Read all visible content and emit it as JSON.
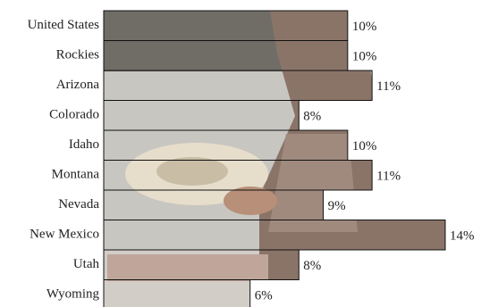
{
  "chart_data": {
    "type": "bar",
    "orientation": "horizontal",
    "categories": [
      "United States",
      "Rockies",
      "Arizona",
      "Colorado",
      "Idaho",
      "Montana",
      "Nevada",
      "New Mexico",
      "Utah",
      "Wyoming"
    ],
    "values": [
      10,
      10,
      11,
      8,
      10,
      11,
      9,
      14,
      8,
      6
    ],
    "value_labels": [
      "10%",
      "10%",
      "11%",
      "8%",
      "10%",
      "11%",
      "9%",
      "14%",
      "8%",
      "6%"
    ],
    "xlim": [
      0,
      14
    ]
  }
}
